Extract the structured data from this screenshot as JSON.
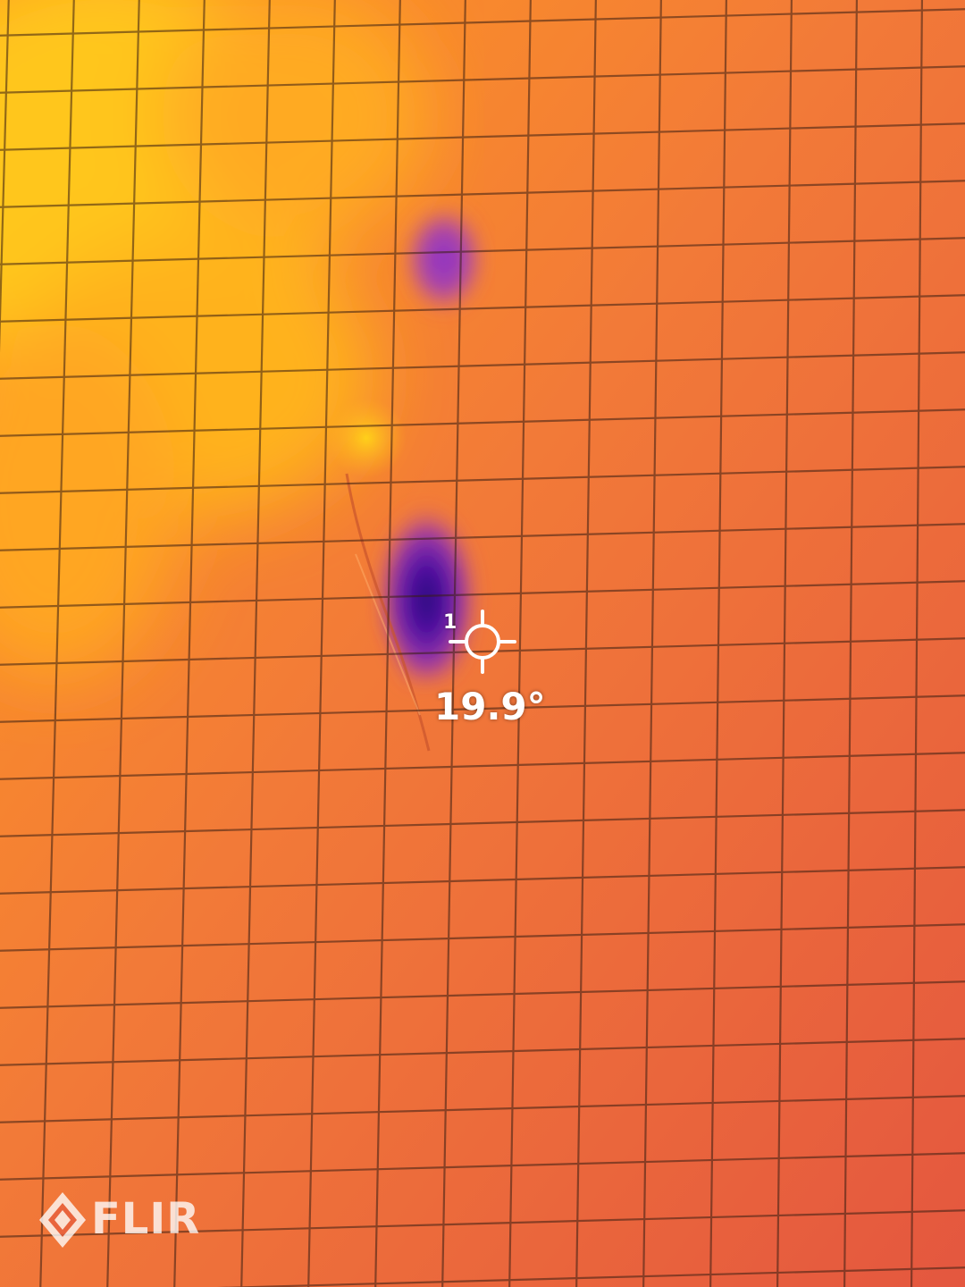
{
  "measurement": {
    "spot_id": "1",
    "temperature": "19.9°"
  },
  "brand": {
    "logo_text": "FLIR"
  },
  "icons": {
    "crosshair": "crosshair-icon",
    "brand_mark": "flir-mark-icon"
  },
  "palette": {
    "warm_yellow": "#ffc21a",
    "mid_orange": "#ff8a2a",
    "base_red_orange": "#e8603f",
    "cold_purple": "#7a2fb8",
    "coldest_indigo": "#3a0a8a",
    "grid_line": "#2a1a14"
  }
}
